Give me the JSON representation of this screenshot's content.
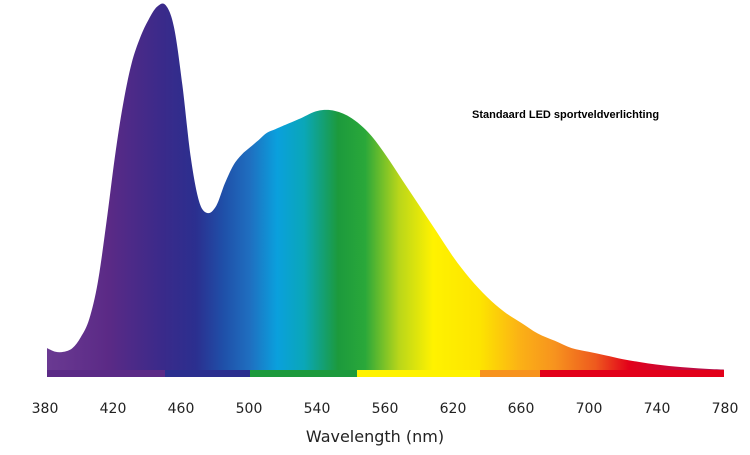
{
  "chart_data": {
    "type": "area",
    "annotation": "Standaard LED sportveldverlichting",
    "xlabel": "Wavelength (nm)",
    "ylabel": "",
    "grid": false,
    "legend": "none",
    "xlim": [
      380,
      780
    ],
    "ylim": [
      0,
      1
    ],
    "tick_labels": [
      "380",
      "420",
      "460",
      "500",
      "540",
      "560",
      "620",
      "660",
      "700",
      "740",
      "780"
    ],
    "series": [
      {
        "x": [
          380,
          385,
          390,
          395,
          400,
          405,
          410,
          415,
          420,
          425,
          430,
          435,
          440,
          445,
          450,
          455,
          460,
          465,
          470,
          475,
          480,
          485,
          490,
          495,
          500,
          505,
          510,
          515,
          520,
          530,
          540,
          550,
          560,
          570,
          580,
          590,
          600,
          610,
          620,
          630,
          640,
          650,
          660,
          670,
          680,
          690,
          700,
          710,
          720,
          730,
          740,
          750,
          760,
          770,
          780
        ],
        "y": [
          0.06,
          0.05,
          0.05,
          0.06,
          0.09,
          0.14,
          0.24,
          0.4,
          0.58,
          0.73,
          0.84,
          0.91,
          0.96,
          0.995,
          1.0,
          0.94,
          0.78,
          0.58,
          0.46,
          0.43,
          0.45,
          0.51,
          0.56,
          0.59,
          0.61,
          0.63,
          0.65,
          0.66,
          0.67,
          0.69,
          0.71,
          0.71,
          0.69,
          0.65,
          0.59,
          0.52,
          0.45,
          0.38,
          0.31,
          0.25,
          0.2,
          0.16,
          0.13,
          0.1,
          0.08,
          0.06,
          0.05,
          0.04,
          0.03,
          0.022,
          0.015,
          0.01,
          0.006,
          0.003,
          0.001
        ]
      }
    ],
    "colors": {
      "violet": "#5b2a86",
      "indigo": "#2b2f8f",
      "blue": "#1f4fa8",
      "cyan": "#0aa0dd",
      "green": "#1c9a3c",
      "yellow_green": "#b9d61a",
      "yellow": "#fff200",
      "orange": "#f7931e",
      "red": "#e2001a",
      "crimson": "#b0104a"
    }
  }
}
